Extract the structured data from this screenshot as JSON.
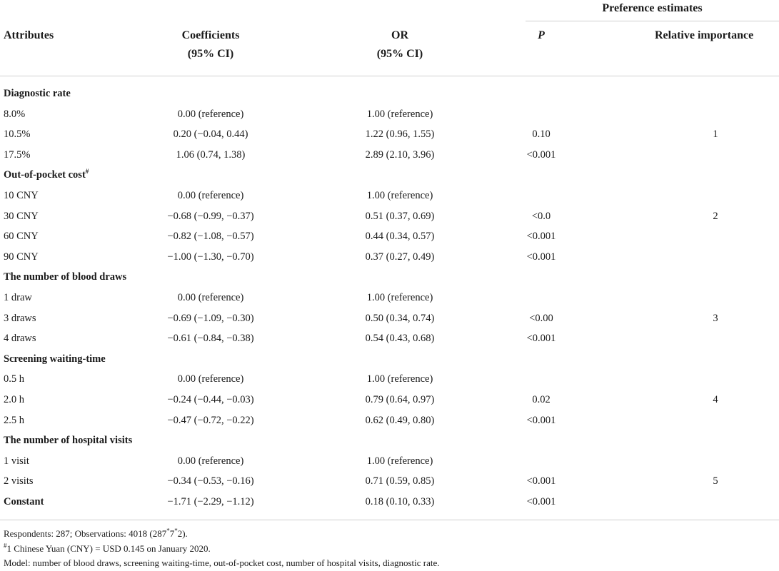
{
  "header": {
    "group_label": "Preference estimates",
    "attributes": "Attributes",
    "coefficients_line1": "Coefficients",
    "coefficients_line2": "(95% CI)",
    "or_line1": "OR",
    "or_line2": "(95% CI)",
    "p": "P",
    "relative_importance": "Relative importance"
  },
  "sections": [
    {
      "title": "Diagnostic rate",
      "title_sup": "",
      "rows": [
        {
          "label": "8.0%",
          "coef": "0.00 (reference)",
          "or": "1.00 (reference)",
          "p": "",
          "importance": ""
        },
        {
          "label": "10.5%",
          "coef": "0.20 (−0.04, 0.44)",
          "or": "1.22 (0.96, 1.55)",
          "p": "0.10",
          "importance": "1"
        },
        {
          "label": "17.5%",
          "coef": "1.06 (0.74, 1.38)",
          "or": "2.89 (2.10, 3.96)",
          "p": "<0.001",
          "importance": ""
        }
      ]
    },
    {
      "title": "Out-of-pocket cost",
      "title_sup": "#",
      "rows": [
        {
          "label": "10 CNY",
          "coef": "0.00 (reference)",
          "or": "1.00 (reference)",
          "p": "",
          "importance": ""
        },
        {
          "label": "30 CNY",
          "coef": "−0.68 (−0.99, −0.37)",
          "or": "0.51 (0.37, 0.69)",
          "p": "<0.0",
          "importance": "2"
        },
        {
          "label": "60 CNY",
          "coef": "−0.82 (−1.08, −0.57)",
          "or": "0.44 (0.34, 0.57)",
          "p": "<0.001",
          "importance": ""
        },
        {
          "label": "90 CNY",
          "coef": "−1.00 (−1.30, −0.70)",
          "or": "0.37 (0.27, 0.49)",
          "p": "<0.001",
          "importance": ""
        }
      ]
    },
    {
      "title": "The number of blood draws",
      "title_sup": "",
      "rows": [
        {
          "label": "1 draw",
          "coef": "0.00 (reference)",
          "or": "1.00 (reference)",
          "p": "",
          "importance": ""
        },
        {
          "label": "3 draws",
          "coef": "−0.69 (−1.09, −0.30)",
          "or": "0.50 (0.34, 0.74)",
          "p": "<0.00",
          "importance": "3"
        },
        {
          "label": "4 draws",
          "coef": "−0.61 (−0.84, −0.38)",
          "or": "0.54 (0.43, 0.68)",
          "p": "<0.001",
          "importance": ""
        }
      ]
    },
    {
      "title": "Screening waiting-time",
      "title_sup": "",
      "rows": [
        {
          "label": "0.5 h",
          "coef": "0.00 (reference)",
          "or": "1.00 (reference)",
          "p": "",
          "importance": ""
        },
        {
          "label": "2.0 h",
          "coef": "−0.24 (−0.44, −0.03)",
          "or": "0.79 (0.64, 0.97)",
          "p": "0.02",
          "importance": "4"
        },
        {
          "label": "2.5 h",
          "coef": "−0.47 (−0.72, −0.22)",
          "or": "0.62 (0.49, 0.80)",
          "p": "<0.001",
          "importance": ""
        }
      ]
    },
    {
      "title": "The number of hospital visits",
      "title_sup": "",
      "rows": [
        {
          "label": "1 visit",
          "coef": "0.00 (reference)",
          "or": "1.00 (reference)",
          "p": "",
          "importance": ""
        },
        {
          "label": "2 visits",
          "coef": "−0.34 (−0.53, −0.16)",
          "or": "0.71 (0.59, 0.85)",
          "p": "<0.001",
          "importance": "5"
        }
      ]
    }
  ],
  "constant_row": {
    "label": "Constant",
    "coef": "−1.71 (−2.29, −1.12)",
    "or": "0.18 (0.10, 0.33)",
    "p": "<0.001"
  },
  "footnotes": {
    "respondents_a": "Respondents: 287; Observations: 4018 (287",
    "respondents_sup1": "*",
    "respondents_b": "7",
    "respondents_sup2": "*",
    "respondents_c": "2).",
    "currency_sup": "#",
    "currency_text": "1 Chinese Yuan (CNY) = USD 0.145 on January 2020.",
    "model": "Model: number of blood draws, screening waiting-time, out-of-pocket cost, number of hospital visits, diagnostic rate."
  }
}
